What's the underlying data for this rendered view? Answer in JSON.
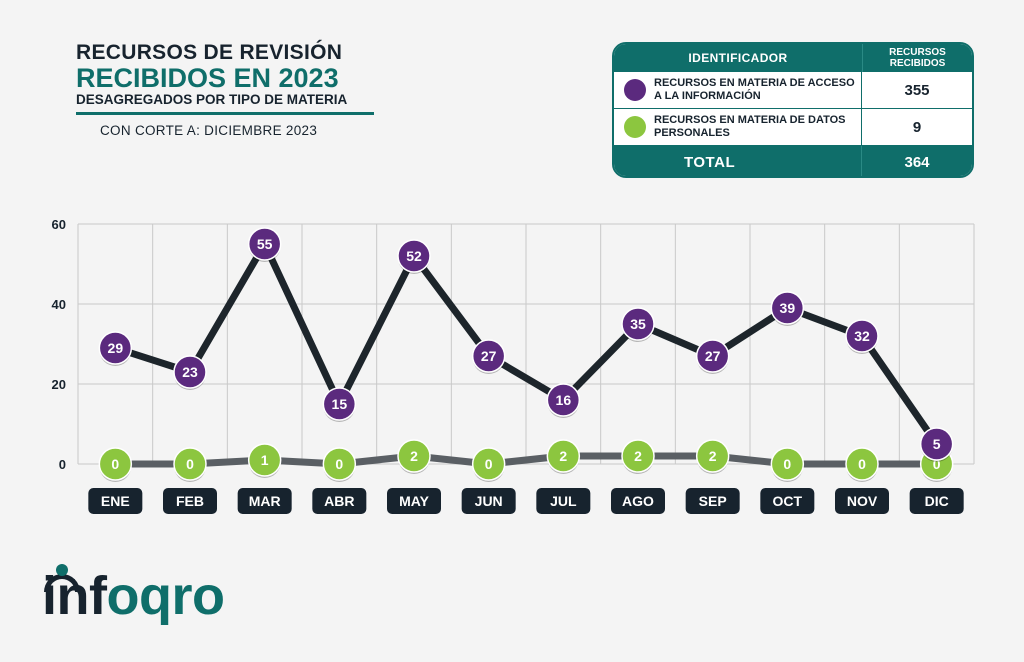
{
  "title": {
    "line1": "RECURSOS DE REVISIÓN",
    "line2": "RECIBIDOS EN 2023",
    "line3": "DESAGREGADOS POR TIPO DE MATERIA",
    "cutoff": "CON CORTE A: DICIEMBRE 2023"
  },
  "summary": {
    "header_identifier": "IDENTIFICADOR",
    "header_received": "RECURSOS RECIBIDOS",
    "rows": [
      {
        "label": "RECURSOS EN MATERIA DE ACCESO A LA INFORMACIÓN",
        "value": "355",
        "color": "#5b2a7e"
      },
      {
        "label": "RECURSOS EN MATERIA DE DATOS PERSONALES",
        "value": "9",
        "color": "#8cc63f"
      }
    ],
    "total_label": "TOTAL",
    "total_value": "364"
  },
  "colors": {
    "teal": "#0f6e6a",
    "dark": "#17232e",
    "purple": "#5b2a7e",
    "green": "#8cc63f",
    "line_dark": "#1d252b",
    "line_gray": "#5a5f64"
  },
  "logo": {
    "part1": "inf",
    "part2": "oqro"
  },
  "chart_data": {
    "type": "line",
    "categories": [
      "ENE",
      "FEB",
      "MAR",
      "ABR",
      "MAY",
      "JUN",
      "JUL",
      "AGO",
      "SEP",
      "OCT",
      "NOV",
      "DIC"
    ],
    "ylim": [
      0,
      60
    ],
    "yticks": [
      0,
      20,
      40,
      60
    ],
    "grid": true,
    "series": [
      {
        "values": [
          29,
          23,
          55,
          15,
          52,
          27,
          16,
          35,
          27,
          39,
          32,
          5
        ],
        "color": "#5b2a7e",
        "line_color": "#1d252b"
      },
      {
        "values": [
          0,
          0,
          1,
          0,
          2,
          0,
          2,
          2,
          2,
          0,
          0,
          0
        ],
        "color": "#8cc63f",
        "line_color": "#5a5f64"
      }
    ]
  }
}
